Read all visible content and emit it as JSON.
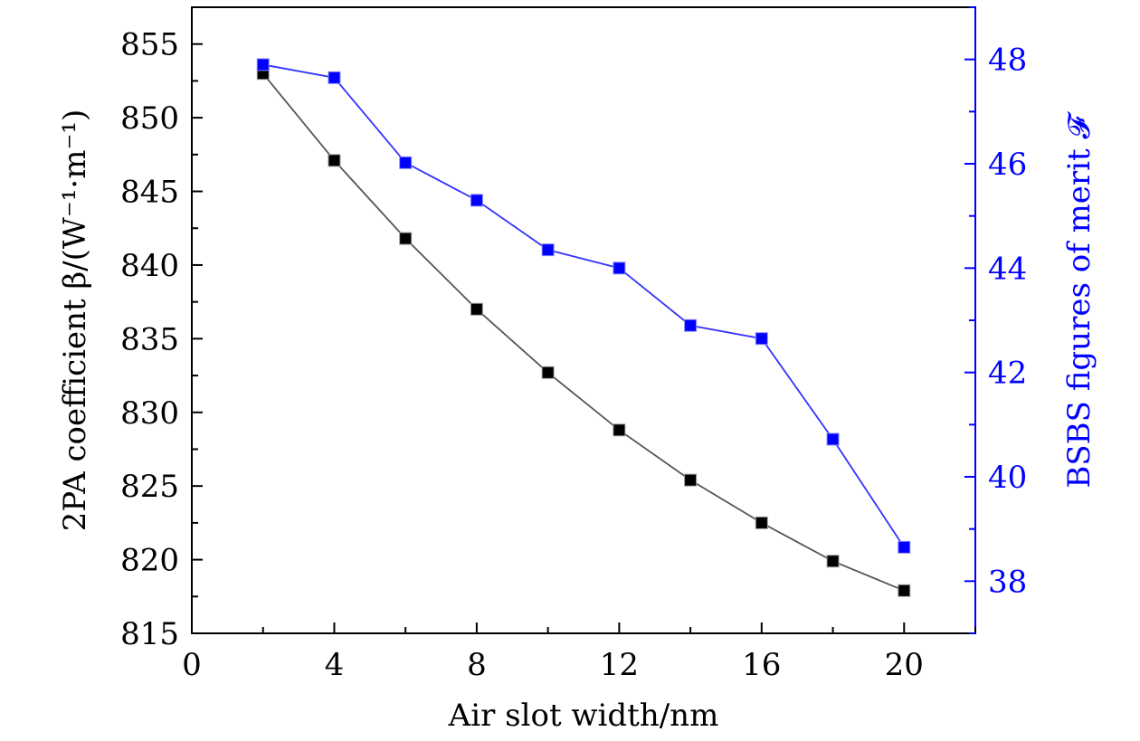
{
  "chart_data": {
    "type": "line",
    "xlabel": "Air slot width/nm",
    "ylabel_left": "2PA coefficient β/(W⁻¹·m⁻¹)",
    "ylabel_right": "BSBS figures of merit 𝓕",
    "xlim": [
      0,
      22
    ],
    "ylim_left": [
      815,
      857.5
    ],
    "ylim_right": [
      37,
      49
    ],
    "x_ticks": [
      0,
      4,
      8,
      12,
      16,
      20
    ],
    "x_tick_labels": [
      "0",
      "4",
      "8",
      "12",
      "16",
      "20"
    ],
    "y_left_ticks": [
      815,
      820,
      825,
      830,
      835,
      840,
      845,
      850,
      855
    ],
    "y_left_tick_labels": [
      "815",
      "820",
      "825",
      "830",
      "835",
      "840",
      "845",
      "850",
      "855"
    ],
    "y_right_ticks": [
      38,
      40,
      42,
      44,
      46,
      48
    ],
    "y_right_tick_labels": [
      "38",
      "40",
      "42",
      "44",
      "46",
      "48"
    ],
    "grid": false,
    "series": [
      {
        "axis": "left",
        "color": "#000000",
        "line_color": "#555555",
        "x": [
          2,
          4,
          6,
          8,
          10,
          12,
          14,
          16,
          18,
          20
        ],
        "values": [
          853.0,
          847.1,
          841.8,
          837.0,
          832.7,
          828.8,
          825.4,
          822.5,
          819.9,
          817.9
        ]
      },
      {
        "axis": "right",
        "color": "#0000ff",
        "line_color": "#3333ff",
        "x": [
          2,
          4,
          6,
          8,
          10,
          12,
          14,
          16,
          18,
          20
        ],
        "values": [
          47.9,
          47.65,
          46.02,
          45.3,
          44.35,
          44.0,
          42.9,
          42.65,
          40.72,
          38.65
        ]
      }
    ]
  },
  "colors": {
    "left_axis": "#000000",
    "right_axis": "#0000ff"
  }
}
